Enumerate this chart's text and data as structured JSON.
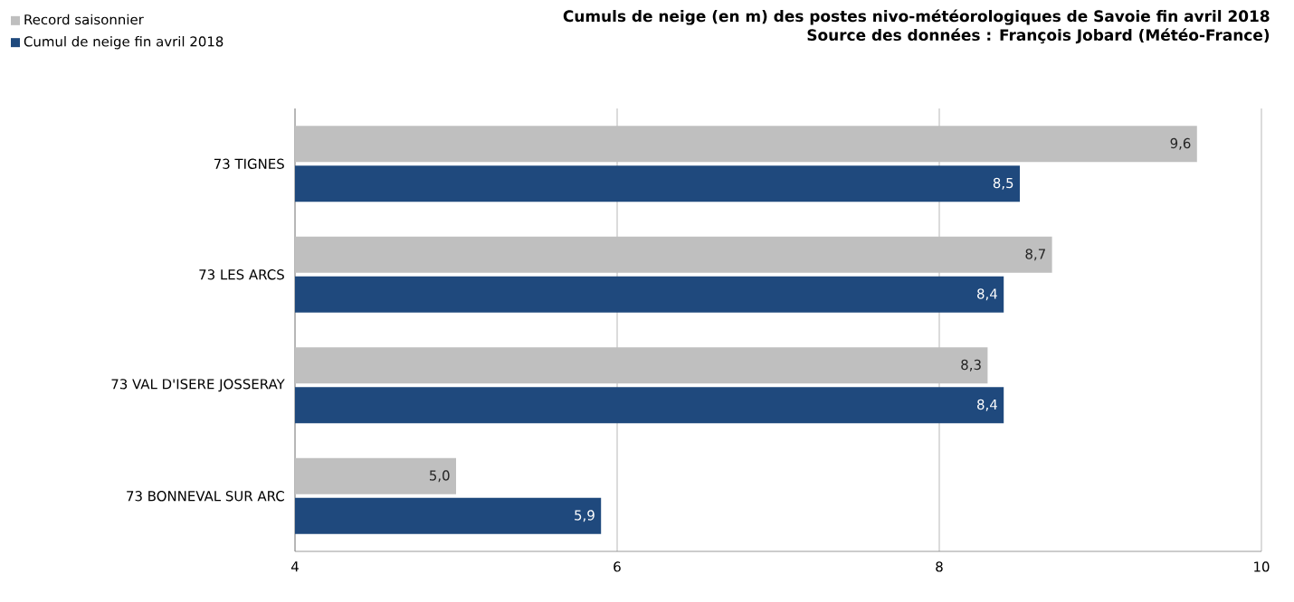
{
  "chart_data": {
    "type": "bar",
    "orientation": "horizontal",
    "title": "Cumuls de neige (en m) des postes nivo-météorologiques de Savoie fin avril 2018",
    "subtitle": "Source des données : François Jobard (Météo-France)",
    "categories": [
      "73 TIGNES",
      "73 LES ARCS",
      "73 VAL D'ISERE JOSSERAY",
      "73 BONNEVAL SUR ARC"
    ],
    "series": [
      {
        "name": "Record saisonnier",
        "color": "#bfbfbf",
        "values": [
          9.6,
          8.7,
          8.3,
          5.0
        ],
        "value_labels": [
          "9,6",
          "8,7",
          "8,3",
          "5,0"
        ]
      },
      {
        "name": "Cumul de neige fin avril 2018",
        "color": "#1f497d",
        "values": [
          8.5,
          8.4,
          8.4,
          5.9
        ],
        "value_labels": [
          "8,5",
          "8,4",
          "8,4",
          "5,9"
        ]
      }
    ],
    "xlim": [
      4,
      10
    ],
    "xticks": [
      4,
      6,
      8,
      10
    ],
    "grid": "x",
    "legend": "top left"
  }
}
